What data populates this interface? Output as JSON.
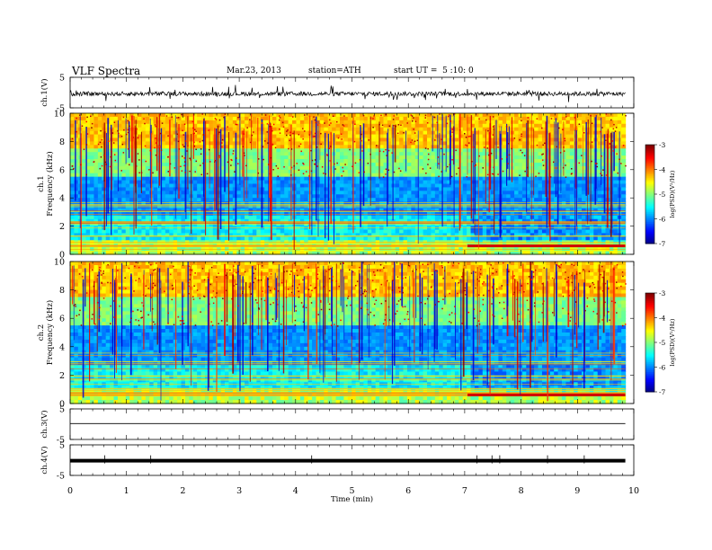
{
  "header": {
    "title": "VLF Spectra",
    "date": "Mar.23, 2013",
    "station": "station=ATH",
    "start": "start UT =  5 :10: 0"
  },
  "chart_data": [
    {
      "type": "line",
      "ylabel": "ch.1(V)",
      "ylim": [
        -5,
        5
      ],
      "yticks": [
        "5",
        "-5"
      ],
      "description_level": 0
    },
    {
      "type": "heatmap",
      "ylabel": "ch.1\nFrequency (kHz)",
      "ylabel_top": "ch.1",
      "ylabel_bottom": "Frequency (kHz)",
      "ylim": [
        0,
        10
      ],
      "yticks": [
        "0",
        "2",
        "4",
        "6",
        "8",
        "10"
      ],
      "colorbar": {
        "label": "log(PSD)(V²/Hz)",
        "ticks": [
          "-3",
          "-4",
          "-5",
          "-6",
          "-7"
        ],
        "range": [
          -7,
          -3
        ]
      }
    },
    {
      "type": "heatmap",
      "ylabel": "ch.2\nFrequency (kHz)",
      "ylabel_top": "ch.2",
      "ylabel_bottom": "Frequency (kHz)",
      "ylim": [
        0,
        10
      ],
      "yticks": [
        "0",
        "2",
        "4",
        "6",
        "8",
        "10"
      ],
      "colorbar": {
        "label": "log(PSD)(V²/Hz)",
        "ticks": [
          "-3",
          "-4",
          "-5",
          "-6",
          "-7"
        ],
        "range": [
          -7,
          -3
        ]
      }
    },
    {
      "type": "line",
      "ylabel": "ch.3(V)",
      "ylim": [
        -5,
        5
      ],
      "yticks": [
        "5",
        "-5"
      ]
    },
    {
      "type": "line",
      "ylabel": "ch.4(V)",
      "ylim": [
        -5,
        5
      ],
      "yticks": [
        "5",
        "-5"
      ]
    }
  ],
  "xaxis": {
    "label": "Time (min)",
    "range": [
      0,
      10
    ],
    "ticks": [
      "0",
      "1",
      "2",
      "3",
      "4",
      "5",
      "6",
      "7",
      "8",
      "9",
      "10"
    ]
  }
}
